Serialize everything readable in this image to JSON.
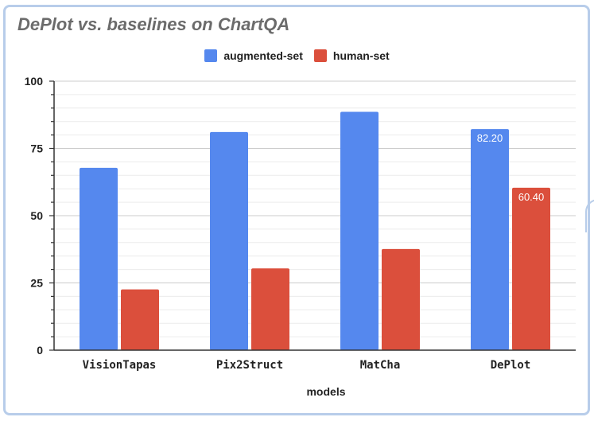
{
  "chart_data": {
    "type": "bar",
    "title": "DePlot vs. baselines on ChartQA",
    "xlabel": "models",
    "ylabel": "",
    "ylim": [
      0,
      100
    ],
    "yticks": [
      0,
      25,
      50,
      75,
      100
    ],
    "grid": true,
    "legend_position": "top",
    "categories": [
      "VisionTapas",
      "Pix2Struct",
      "MatCha",
      "DePlot"
    ],
    "series": [
      {
        "name": "augmented-set",
        "color": "#5588ee",
        "values": [
          67.8,
          81.1,
          88.6,
          82.2
        ],
        "data_labels": [
          "",
          "",
          "",
          "82.20"
        ]
      },
      {
        "name": "human-set",
        "color": "#db4f3c",
        "values": [
          22.6,
          30.4,
          37.6,
          60.4
        ],
        "data_labels": [
          "",
          "",
          "",
          "60.40"
        ]
      }
    ]
  }
}
